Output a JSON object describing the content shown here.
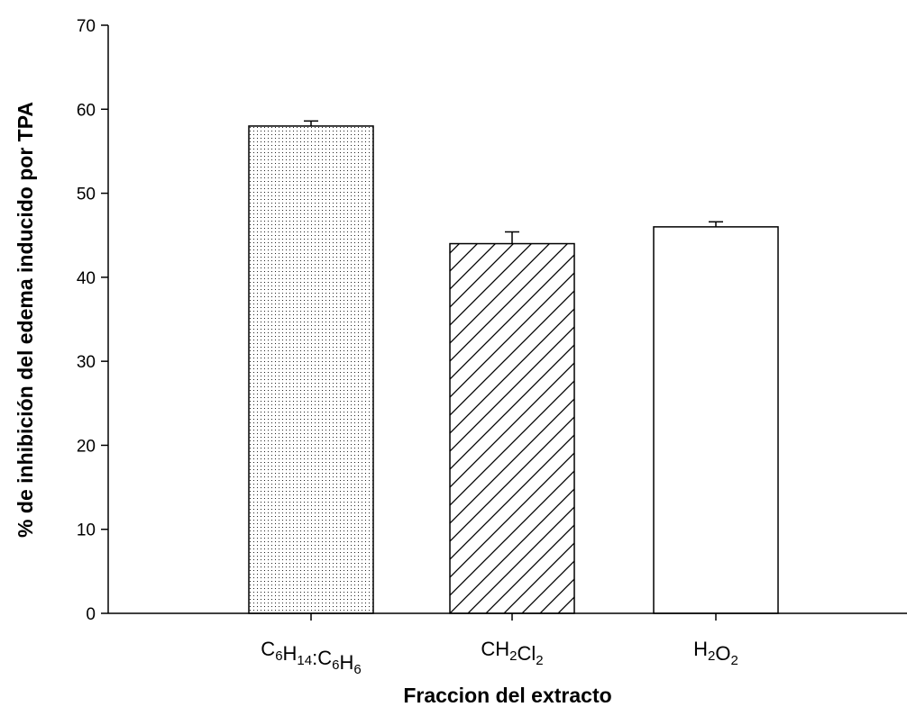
{
  "chart_data": {
    "type": "bar",
    "title": "",
    "xlabel": "Fraccion del extracto",
    "ylabel": "% de inhibición del edema inducido por TPA",
    "ylim": [
      0,
      70
    ],
    "yticks": [
      0,
      10,
      20,
      30,
      40,
      50,
      60,
      70
    ],
    "grid": false,
    "categories": [
      {
        "label": "C6H14:C6H6",
        "parts": [
          {
            "t": "C",
            "sub": false
          },
          {
            "t": "6",
            "sub": true
          },
          {
            "t": "H",
            "sub": false
          },
          {
            "t": "14",
            "sub": true
          },
          {
            "t": ":C",
            "sub": false
          },
          {
            "t": "6",
            "sub": true
          },
          {
            "t": "H",
            "sub": false
          },
          {
            "t": "6",
            "sub": true
          }
        ]
      },
      {
        "label": "CH2Cl2",
        "parts": [
          {
            "t": "CH",
            "sub": false
          },
          {
            "t": "2",
            "sub": true
          },
          {
            "t": "Cl",
            "sub": false
          },
          {
            "t": "2",
            "sub": true
          }
        ]
      },
      {
        "label": "H2O2",
        "parts": [
          {
            "t": "H",
            "sub": false
          },
          {
            "t": "2",
            "sub": true
          },
          {
            "t": "O",
            "sub": false
          },
          {
            "t": "2",
            "sub": true
          }
        ]
      }
    ],
    "values": [
      58,
      44,
      46
    ],
    "errors": [
      0.6,
      1.4,
      0.6
    ],
    "fills": [
      "dots",
      "hatch",
      "none"
    ],
    "colors": {
      "axis": "#000000",
      "bar_stroke": "#000000",
      "bar_fill": "#ffffff"
    }
  }
}
